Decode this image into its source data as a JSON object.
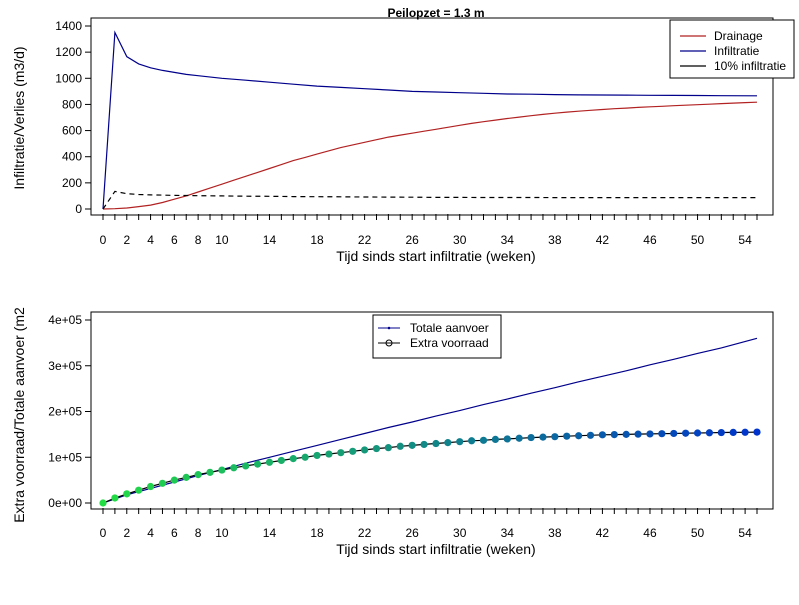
{
  "chart_data": [
    {
      "type": "line",
      "title": "Peilopzet = 1.3 m",
      "xlabel": "Tijd sinds start infiltratie (weken)",
      "ylabel": "Infiltratie/Verlies (m3/d)",
      "xlim": [
        0,
        55
      ],
      "ylim": [
        0,
        1400
      ],
      "x_tick_labels": [
        "0",
        "2",
        "4",
        "6",
        "8",
        "10",
        "14",
        "18",
        "22",
        "26",
        "30",
        "34",
        "38",
        "42",
        "46",
        "50",
        "54"
      ],
      "y_tick_labels": [
        "0",
        "200",
        "400",
        "600",
        "800",
        "1000",
        "1200",
        "1400"
      ],
      "legend_position": "top-right",
      "legend": [
        "Drainage",
        "Infiltratie",
        "10% infiltratie"
      ],
      "series": [
        {
          "name": "Drainage",
          "color": "#b22222",
          "dash": "solid",
          "x": [
            0,
            1,
            2,
            3,
            4,
            5,
            6,
            7,
            8,
            9,
            10,
            11,
            12,
            13,
            14,
            15,
            16,
            17,
            18,
            19,
            20,
            21,
            22,
            23,
            24,
            25,
            26,
            27,
            28,
            29,
            30,
            31,
            32,
            33,
            34,
            35,
            36,
            37,
            38,
            39,
            40,
            41,
            42,
            43,
            44,
            45,
            46,
            47,
            48,
            49,
            50,
            51,
            52,
            53,
            54,
            55
          ],
          "y": [
            0,
            2,
            8,
            18,
            30,
            50,
            75,
            100,
            130,
            160,
            190,
            220,
            250,
            280,
            310,
            340,
            370,
            395,
            420,
            445,
            470,
            490,
            510,
            530,
            550,
            565,
            580,
            595,
            610,
            625,
            640,
            655,
            668,
            680,
            692,
            703,
            714,
            724,
            733,
            741,
            748,
            755,
            761,
            767,
            772,
            777,
            782,
            786,
            790,
            794,
            798,
            802,
            806,
            810,
            814,
            817
          ]
        },
        {
          "name": "Infiltratie",
          "color": "#00008b",
          "dash": "solid",
          "x": [
            0,
            1,
            2,
            3,
            4,
            5,
            6,
            7,
            8,
            10,
            12,
            14,
            16,
            18,
            20,
            22,
            24,
            26,
            28,
            30,
            32,
            34,
            36,
            38,
            40,
            42,
            44,
            46,
            48,
            50,
            52,
            55
          ],
          "y": [
            0,
            1350,
            1165,
            1110,
            1080,
            1060,
            1045,
            1030,
            1020,
            1000,
            985,
            970,
            955,
            940,
            930,
            920,
            910,
            900,
            895,
            890,
            885,
            880,
            878,
            875,
            873,
            872,
            871,
            870,
            869,
            868,
            867,
            866
          ]
        },
        {
          "name": "10% infiltratie",
          "color": "#000000",
          "dash": "dashed",
          "x": [
            0,
            1,
            2,
            3,
            4,
            5,
            6,
            7,
            8,
            10,
            12,
            14,
            16,
            18,
            20,
            22,
            24,
            26,
            28,
            30,
            32,
            34,
            36,
            38,
            40,
            42,
            44,
            46,
            48,
            50,
            52,
            55
          ],
          "y": [
            0,
            135,
            117,
            111,
            108,
            106,
            104,
            103,
            102,
            100,
            98,
            97,
            95,
            94,
            93,
            92,
            91,
            90,
            89,
            89,
            88,
            88,
            88,
            87,
            87,
            87,
            87,
            87,
            87,
            87,
            87,
            87
          ]
        }
      ]
    },
    {
      "type": "line",
      "title": "",
      "xlabel": "Tijd sinds start infiltratie (weken)",
      "ylabel": "Extra voorraad/Totale aanvoer (m2",
      "xlim": [
        0,
        55
      ],
      "ylim": [
        0,
        400000
      ],
      "x_tick_labels": [
        "0",
        "2",
        "4",
        "6",
        "8",
        "10",
        "14",
        "18",
        "22",
        "26",
        "30",
        "34",
        "38",
        "42",
        "46",
        "50",
        "54"
      ],
      "y_tick_labels": [
        "0e+00",
        "1e+05",
        "2e+05",
        "3e+05",
        "4e+05"
      ],
      "legend_position": "top-center",
      "legend": [
        "Totale aanvoer",
        "Extra voorraad"
      ],
      "series": [
        {
          "name": "Totale aanvoer",
          "color": "#00008b",
          "style": "line",
          "x": [
            0,
            2,
            4,
            6,
            8,
            10,
            12,
            14,
            16,
            18,
            20,
            22,
            24,
            26,
            28,
            30,
            32,
            34,
            36,
            38,
            40,
            42,
            44,
            46,
            48,
            50,
            52,
            55
          ],
          "y": [
            0,
            18000,
            32000,
            46000,
            60000,
            73000,
            87000,
            100000,
            113000,
            126000,
            139000,
            152000,
            165000,
            177000,
            190000,
            202000,
            215000,
            227000,
            240000,
            252000,
            265000,
            277000,
            289000,
            302000,
            314000,
            327000,
            339000,
            360000
          ]
        },
        {
          "name": "Extra voorraad",
          "color_start": "#22dd44",
          "color_end": "#0033cc",
          "style": "line-points",
          "x": [
            0,
            1,
            2,
            3,
            4,
            5,
            6,
            7,
            8,
            9,
            10,
            11,
            12,
            13,
            14,
            15,
            16,
            17,
            18,
            19,
            20,
            21,
            22,
            23,
            24,
            25,
            26,
            27,
            28,
            29,
            30,
            31,
            32,
            33,
            34,
            35,
            36,
            37,
            38,
            39,
            40,
            41,
            42,
            43,
            44,
            45,
            46,
            47,
            48,
            49,
            50,
            51,
            52,
            53,
            54,
            55
          ],
          "y": [
            0,
            11000,
            20000,
            28000,
            36000,
            43000,
            50000,
            56000,
            62000,
            67000,
            72000,
            77000,
            81000,
            85000,
            89000,
            93000,
            97000,
            100000,
            104000,
            107000,
            110000,
            113000,
            116000,
            119000,
            121000,
            124000,
            126000,
            128000,
            130000,
            132000,
            134000,
            136000,
            137000,
            139000,
            140000,
            141500,
            143000,
            144000,
            145000,
            146000,
            147000,
            148000,
            149000,
            149500,
            150000,
            150500,
            151000,
            151500,
            152000,
            152500,
            153000,
            153500,
            154000,
            154300,
            154600,
            155000
          ]
        }
      ]
    }
  ]
}
